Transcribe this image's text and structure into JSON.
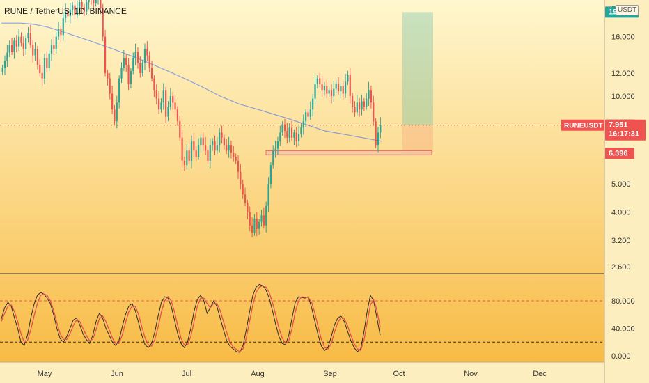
{
  "header": {
    "title": "RUNE / TetherUS, 1D, BINANCE",
    "unit": "USDT"
  },
  "colors": {
    "up": "#26a69a",
    "down": "#ef5350",
    "ma": "#2962ff",
    "stoch_k": "#2a2a2a",
    "stoch_d": "#e05050",
    "bg_top": "#fff7cf",
    "bg_bottom": "#f8bb45",
    "target": "#26a69a",
    "stop": "#ef5350",
    "badge_target": "#26a69a",
    "badge_price": "#ef5350"
  },
  "price_labels": {
    "target": "19.418",
    "last_close": "7.959",
    "symbol": "RUNEUSDT",
    "current": "7.951",
    "countdown": "16:17:31",
    "stop": "6.396"
  },
  "chart_data": {
    "type": "candlestick",
    "title": "RUNE / TetherUS, 1D, BINANCE",
    "price_axis": {
      "scale": "log",
      "ticks": [
        "2.600",
        "3.200",
        "4.000",
        "5.000",
        "10.000",
        "12.000",
        "16.000",
        "20.000"
      ],
      "tick_values": [
        2.6,
        3.2,
        4.0,
        5.0,
        10.0,
        12.0,
        16.0,
        20.0
      ]
    },
    "time_axis": {
      "labels": [
        "May",
        "Jun",
        "Jul",
        "Aug",
        "Sep",
        "Oct",
        "Nov",
        "Dec"
      ],
      "start_date": "2021-04-01"
    },
    "closes": [
      12.5,
      13.2,
      14.1,
      15.0,
      14.2,
      15.5,
      14.8,
      16.0,
      15.2,
      14.5,
      15.8,
      16.5,
      15.0,
      13.8,
      14.5,
      12.8,
      12.0,
      11.5,
      13.5,
      12.5,
      14.0,
      15.0,
      14.5,
      16.0,
      17.0,
      16.2,
      18.5,
      19.5,
      18.8,
      19.8,
      20.5,
      19.0,
      20.0,
      21.0,
      20.2,
      19.5,
      21.0,
      22.0,
      21.5,
      20.8,
      21.8,
      22.5,
      20.0,
      16.0,
      12.0,
      11.5,
      10.2,
      9.0,
      8.2,
      9.5,
      11.5,
      12.5,
      13.5,
      12.8,
      11.0,
      12.2,
      13.5,
      14.2,
      13.0,
      12.0,
      13.0,
      14.5,
      13.8,
      12.5,
      11.5,
      10.5,
      9.8,
      9.0,
      9.5,
      10.5,
      8.5,
      9.2,
      10.0,
      9.5,
      9.0,
      8.2,
      7.2,
      6.0,
      5.8,
      6.5,
      6.0,
      7.0,
      6.5,
      6.2,
      6.8,
      7.2,
      6.8,
      6.5,
      6.0,
      6.8,
      7.0,
      6.5,
      6.8,
      7.5,
      7.2,
      6.8,
      6.5,
      6.8,
      6.4,
      6.2,
      6.0,
      5.5,
      5.0,
      4.6,
      4.3,
      4.0,
      3.6,
      3.4,
      3.8,
      3.5,
      3.7,
      3.9,
      3.6,
      4.2,
      5.0,
      5.8,
      6.5,
      6.6,
      7.0,
      7.5,
      8.0,
      7.6,
      7.2,
      7.8,
      7.2,
      7.5,
      7.0,
      7.4,
      7.8,
      8.2,
      8.8,
      8.5,
      9.0,
      9.8,
      11.0,
      11.5,
      11.0,
      10.5,
      10.8,
      10.2,
      10.5,
      10.0,
      10.6,
      11.0,
      10.4,
      10.8,
      10.2,
      11.2,
      11.8,
      10.0,
      9.2,
      8.8,
      9.5,
      9.0,
      9.6,
      9.2,
      9.8,
      10.5,
      9.5,
      8.2,
      6.8,
      7.5,
      7.951
    ],
    "moving_average": [
      17.8,
      17.8,
      17.8,
      17.7,
      17.5,
      17.2,
      16.8,
      16.4,
      16.0,
      15.6,
      15.2,
      14.8,
      14.4,
      14.0,
      13.6,
      13.2,
      12.8,
      12.4,
      12.0,
      11.6,
      11.2,
      10.8,
      10.4,
      10.0,
      9.7,
      9.4,
      9.2,
      9.0,
      8.8,
      8.6,
      8.4,
      8.2,
      8.0,
      7.8,
      7.6,
      7.5,
      7.4,
      7.3,
      7.2,
      7.1,
      7.0
    ],
    "stoch": {
      "ticks": [
        "0.000",
        "40.000",
        "80.000"
      ],
      "tick_values": [
        0,
        40,
        80
      ],
      "upper_band": 80,
      "lower_band": 20,
      "k": [
        54,
        70,
        78,
        72,
        55,
        40,
        20,
        15,
        30,
        55,
        75,
        88,
        92,
        90,
        84,
        76,
        60,
        40,
        25,
        20,
        28,
        40,
        52,
        55,
        45,
        32,
        24,
        18,
        30,
        50,
        62,
        55,
        40,
        30,
        20,
        15,
        22,
        42,
        60,
        72,
        76,
        66,
        48,
        30,
        16,
        12,
        18,
        35,
        58,
        78,
        86,
        84,
        72,
        52,
        32,
        18,
        12,
        20,
        40,
        65,
        82,
        88,
        80,
        62,
        70,
        80,
        72,
        55,
        38,
        22,
        14,
        10,
        6,
        5,
        15,
        38,
        64,
        88,
        100,
        104,
        102,
        96,
        84,
        66,
        46,
        28,
        18,
        16,
        30,
        55,
        78,
        86,
        85,
        84,
        86,
        70,
        50,
        30,
        14,
        8,
        12,
        28,
        45,
        55,
        58,
        50,
        36,
        22,
        12,
        6,
        10,
        34,
        64,
        88,
        80,
        55,
        30
      ],
      "d": [
        50,
        62,
        72,
        74,
        64,
        50,
        32,
        20,
        22,
        38,
        58,
        76,
        88,
        90,
        88,
        80,
        66,
        48,
        32,
        24,
        24,
        32,
        44,
        52,
        50,
        40,
        30,
        22,
        24,
        38,
        54,
        58,
        50,
        38,
        26,
        18,
        18,
        30,
        48,
        64,
        72,
        72,
        60,
        42,
        26,
        16,
        14,
        24,
        42,
        64,
        80,
        86,
        80,
        64,
        44,
        26,
        16,
        16,
        28,
        50,
        72,
        84,
        84,
        76,
        70,
        76,
        76,
        66,
        50,
        34,
        20,
        13,
        9,
        6,
        10,
        26,
        50,
        74,
        92,
        100,
        102,
        100,
        92,
        78,
        60,
        40,
        26,
        18,
        22,
        40,
        64,
        80,
        86,
        85,
        85,
        78,
        62,
        42,
        24,
        12,
        10,
        18,
        34,
        48,
        56,
        54,
        44,
        30,
        18,
        10,
        8,
        22,
        48,
        74,
        82,
        66,
        42
      ]
    }
  }
}
